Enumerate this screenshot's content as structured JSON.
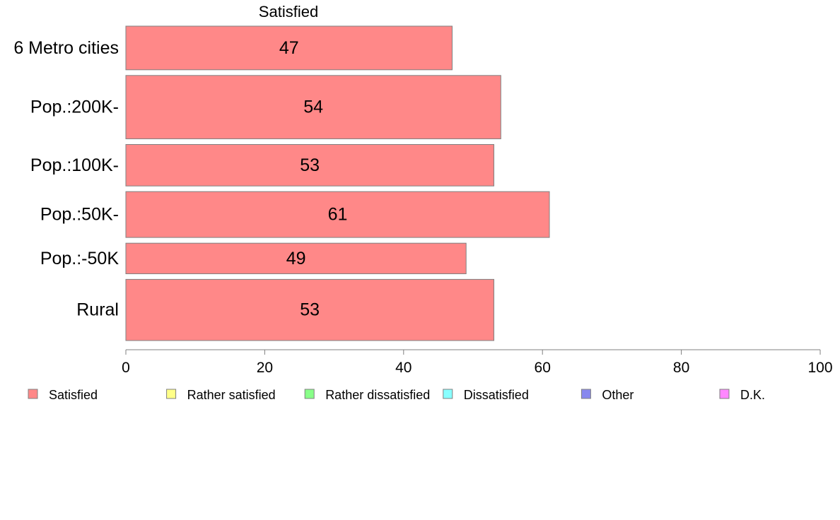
{
  "chart_data": {
    "type": "bar",
    "orientation": "horizontal",
    "title": "Satisfied",
    "categories": [
      "6 Metro cities",
      "Pop.:200K-",
      "Pop.:100K-",
      "Pop.:50K-",
      "Pop.:-50K",
      "Rural"
    ],
    "series": [
      {
        "name": "Satisfied",
        "values": [
          47,
          54,
          53,
          61,
          49,
          53
        ],
        "color": "#ff8888"
      }
    ],
    "bar_weights": [
      1.0,
      1.45,
      0.95,
      1.05,
      0.7,
      1.4
    ],
    "xlim": [
      0,
      100
    ],
    "xticks": [
      0,
      20,
      40,
      60,
      80,
      100
    ],
    "grid": false,
    "legend_position": "bottom",
    "legend": [
      {
        "label": "Satisfied",
        "color": "#ff8888"
      },
      {
        "label": "Rather satisfied",
        "color": "#ffff88"
      },
      {
        "label": "Rather dissatisfied",
        "color": "#88ff88"
      },
      {
        "label": "Dissatisfied",
        "color": "#88ffff"
      },
      {
        "label": "Other",
        "color": "#8888ee"
      },
      {
        "label": "D.K.",
        "color": "#ff88ff"
      }
    ]
  }
}
